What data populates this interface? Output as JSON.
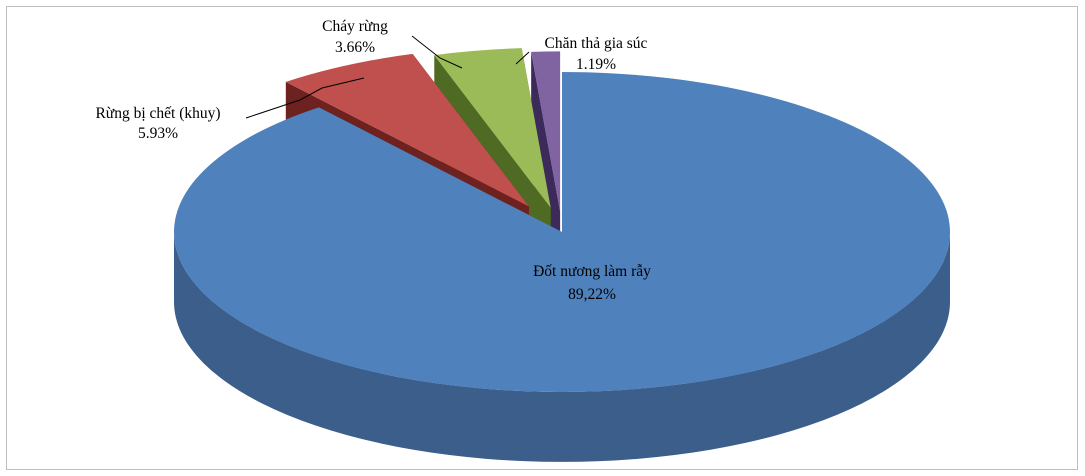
{
  "chart_data": {
    "type": "pie",
    "style": "3d-exploded",
    "slices": [
      {
        "label": "Đốt nương làm rẫy",
        "value_text": "89,22%",
        "value": 89.22,
        "color": "#4f81bd",
        "side_color": "#3b5e8a"
      },
      {
        "label": "Rừng bị chết (khuy)",
        "value_text": "5.93%",
        "value": 5.93,
        "color": "#c0504d",
        "side_color": "#6e2220"
      },
      {
        "label": "Cháy rừng",
        "value_text": "3.66%",
        "value": 3.66,
        "color": "#9bbb59",
        "side_color": "#4f6a22"
      },
      {
        "label": "Chăn thả gia súc",
        "value_text": "1.19%",
        "value": 1.19,
        "color": "#8064a2",
        "side_color": "#3c2a5a"
      }
    ]
  }
}
